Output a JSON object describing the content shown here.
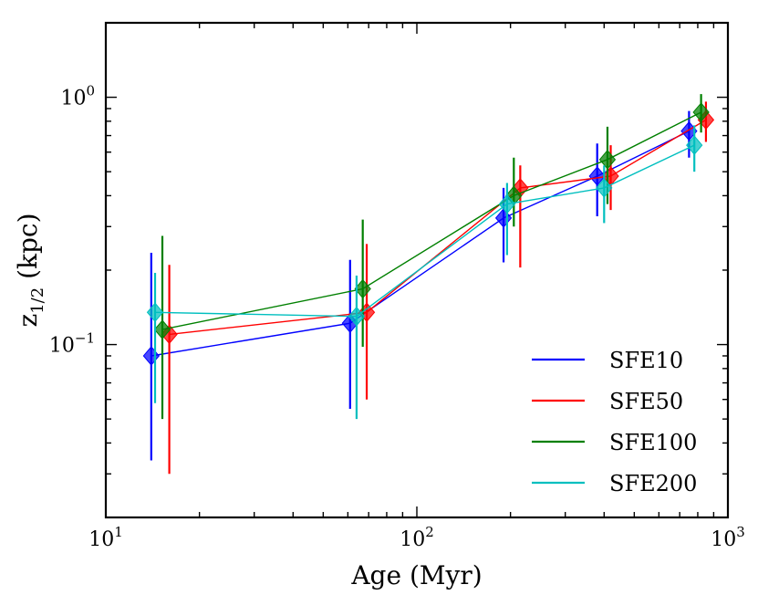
{
  "chart_data": {
    "type": "scatter",
    "title": "",
    "xlabel": "Age (Myr)",
    "ylabel": "z1/2 (kpc)",
    "ylabel_main": "z",
    "ylabel_sub": "1/2",
    "ylabel_unit": " (kpc)",
    "xscale": "log",
    "yscale": "log",
    "xlim": [
      10,
      1000
    ],
    "ylim": [
      0.02,
      2.0
    ],
    "x_tick_labels": [
      {
        "value": 10,
        "base": "10",
        "exp": "1"
      },
      {
        "value": 100,
        "base": "10",
        "exp": "2"
      },
      {
        "value": 1000,
        "base": "10",
        "exp": "3"
      }
    ],
    "y_tick_labels": [
      {
        "value": 0.1,
        "base": "10",
        "exp": "−1"
      },
      {
        "value": 1.0,
        "base": "10",
        "exp": "0"
      }
    ],
    "legend_position": "lower-right",
    "series": [
      {
        "name": "SFE10",
        "color": "#0000ff",
        "points": [
          {
            "x": 14.0,
            "y": 0.09,
            "ylo": 0.034,
            "yhi": 0.235
          },
          {
            "x": 61.0,
            "y": 0.122,
            "ylo": 0.055,
            "yhi": 0.22
          },
          {
            "x": 190.0,
            "y": 0.325,
            "ylo": 0.215,
            "yhi": 0.43
          },
          {
            "x": 380.0,
            "y": 0.48,
            "ylo": 0.33,
            "yhi": 0.65
          },
          {
            "x": 750.0,
            "y": 0.73,
            "ylo": 0.57,
            "yhi": 0.88
          }
        ]
      },
      {
        "name": "SFE50",
        "color": "#ff0000",
        "points": [
          {
            "x": 16.0,
            "y": 0.11,
            "ylo": 0.03,
            "yhi": 0.21
          },
          {
            "x": 69.0,
            "y": 0.135,
            "ylo": 0.06,
            "yhi": 0.255
          },
          {
            "x": 215.0,
            "y": 0.43,
            "ylo": 0.205,
            "yhi": 0.53
          },
          {
            "x": 420.0,
            "y": 0.48,
            "ylo": 0.35,
            "yhi": 0.64
          },
          {
            "x": 850.0,
            "y": 0.81,
            "ylo": 0.66,
            "yhi": 0.96
          }
        ]
      },
      {
        "name": "SFE100",
        "color": "#008000",
        "points": [
          {
            "x": 15.2,
            "y": 0.115,
            "ylo": 0.05,
            "yhi": 0.275
          },
          {
            "x": 67.0,
            "y": 0.168,
            "ylo": 0.098,
            "yhi": 0.32
          },
          {
            "x": 205.0,
            "y": 0.4,
            "ylo": 0.3,
            "yhi": 0.57
          },
          {
            "x": 410.0,
            "y": 0.56,
            "ylo": 0.37,
            "yhi": 0.76
          },
          {
            "x": 820.0,
            "y": 0.87,
            "ylo": 0.72,
            "yhi": 1.03
          }
        ]
      },
      {
        "name": "SFE200",
        "color": "#00bfbf",
        "points": [
          {
            "x": 14.4,
            "y": 0.135,
            "ylo": 0.058,
            "yhi": 0.195
          },
          {
            "x": 64.0,
            "y": 0.13,
            "ylo": 0.05,
            "yhi": 0.19
          },
          {
            "x": 195.0,
            "y": 0.37,
            "ylo": 0.23,
            "yhi": 0.45
          },
          {
            "x": 400.0,
            "y": 0.43,
            "ylo": 0.31,
            "yhi": 0.53
          },
          {
            "x": 780.0,
            "y": 0.64,
            "ylo": 0.5,
            "yhi": 0.77
          }
        ]
      }
    ]
  }
}
